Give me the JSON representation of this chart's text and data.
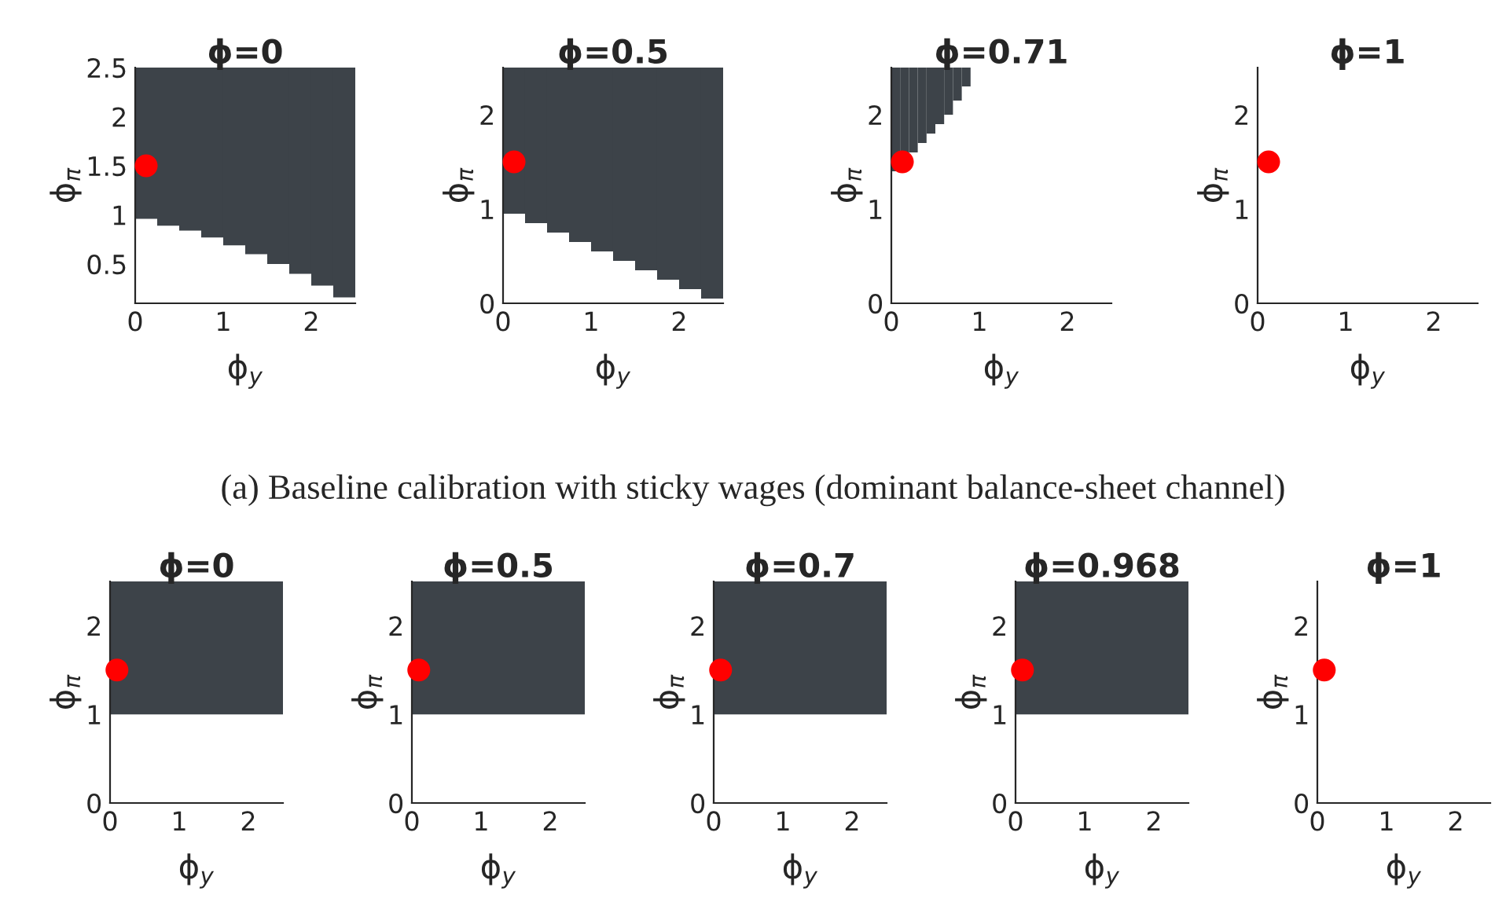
{
  "chart_data": [
    {
      "type": "bar",
      "title": "ϕ=0",
      "xlabel": "ϕ$_{y}$",
      "ylabel": "ϕ$_{π}$",
      "xlim": [
        0,
        2.5
      ],
      "ylim": [
        0.1,
        2.5
      ],
      "xticks": [
        0,
        1,
        2
      ],
      "yticks": [
        0.5,
        1,
        1.5,
        2,
        2.5
      ],
      "annotations": [
        "(a) Baseline calibration with sticky wages (dominant balance-sheet channel)"
      ],
      "series": [
        {
          "color": "#3d4349",
          "x": [
            0.125,
            0.375,
            0.625,
            0.875,
            1.125,
            1.375,
            1.625,
            1.875,
            2.125,
            2.375
          ],
          "base": [
            0.96,
            0.89,
            0.84,
            0.77,
            0.69,
            0.6,
            0.5,
            0.4,
            0.28,
            0.16
          ],
          "values": [
            1.54,
            1.61,
            1.66,
            1.73,
            1.81,
            1.9,
            2.0,
            2.1,
            2.22,
            2.34
          ]
        },
        {
          "type": "scatter",
          "marker": "circle",
          "color": "#ff0000",
          "x": [
            0.125
          ],
          "values": [
            1.5
          ]
        }
      ]
    },
    {
      "type": "bar",
      "title": "ϕ=0.5",
      "xlabel": "ϕ$_{y}$",
      "ylabel": "ϕ$_{π}$",
      "xlim": [
        0,
        2.5
      ],
      "ylim": [
        0,
        2.5
      ],
      "xticks": [
        0,
        1,
        2
      ],
      "yticks": [
        0,
        1,
        2
      ],
      "series": [
        {
          "color": "#3d4349",
          "x": [
            0.125,
            0.375,
            0.625,
            0.875,
            1.125,
            1.375,
            1.625,
            1.875,
            2.125,
            2.375
          ],
          "base": [
            0.95,
            0.85,
            0.75,
            0.65,
            0.55,
            0.45,
            0.35,
            0.25,
            0.15,
            0.05
          ],
          "values": [
            1.55,
            1.65,
            1.75,
            1.85,
            1.95,
            2.05,
            2.15,
            2.25,
            2.35,
            2.45
          ]
        },
        {
          "type": "scatter",
          "marker": "circle",
          "color": "#ff0000",
          "x": [
            0.125
          ],
          "values": [
            1.5
          ]
        }
      ]
    },
    {
      "type": "bar",
      "title": "ϕ=0.71",
      "xlabel": "ϕ$_{y}$",
      "ylabel": "ϕ$_{π}$",
      "xlim": [
        0,
        2.5
      ],
      "ylim": [
        0,
        2.5
      ],
      "xticks": [
        0,
        1,
        2
      ],
      "yticks": [
        0,
        1,
        2
      ],
      "series": [
        {
          "color": "#3d4349",
          "x": [
            0.05,
            0.15,
            0.25,
            0.35,
            0.45,
            0.55,
            0.65,
            0.75,
            0.85
          ],
          "base": [
            1.4,
            1.5,
            1.6,
            1.7,
            1.8,
            1.9,
            2.0,
            2.15,
            2.3
          ],
          "values": [
            1.1,
            1.0,
            0.9,
            0.8,
            0.7,
            0.6,
            0.5,
            0.35,
            0.2
          ]
        },
        {
          "type": "scatter",
          "marker": "circle",
          "color": "#ff0000",
          "x": [
            0.125
          ],
          "values": [
            1.5
          ]
        }
      ]
    },
    {
      "type": "scatter",
      "title": "ϕ=1",
      "xlabel": "ϕ$_{y}$",
      "ylabel": "ϕ$_{π}$",
      "xlim": [
        0,
        2.5
      ],
      "ylim": [
        0,
        2.5
      ],
      "xticks": [
        0,
        1,
        2
      ],
      "yticks": [
        0,
        1,
        2
      ],
      "series": [
        {
          "marker": "circle",
          "color": "#ff0000",
          "x": [
            0.125
          ],
          "values": [
            1.5
          ]
        }
      ]
    },
    {
      "type": "scatter",
      "title": "ϕ=0",
      "xlabel": "ϕ$_{y}$",
      "ylabel": "ϕ$_{π}$",
      "xlim": [
        0,
        2.5
      ],
      "ylim": [
        0,
        2.5
      ],
      "xticks": [
        0,
        1,
        2
      ],
      "yticks": [
        0,
        1,
        2
      ],
      "bands": [
        {
          "axis": "y",
          "from": 1.0,
          "to": 2.5,
          "color": "#3d4349"
        }
      ],
      "series": [
        {
          "marker": "circle",
          "color": "#ff0000",
          "x": [
            0.1
          ],
          "values": [
            1.5
          ]
        }
      ]
    },
    {
      "type": "scatter",
      "title": "ϕ=0.5",
      "xlabel": "ϕ$_{y}$",
      "ylabel": "ϕ$_{π}$",
      "xlim": [
        0,
        2.5
      ],
      "ylim": [
        0,
        2.5
      ],
      "xticks": [
        0,
        1,
        2
      ],
      "yticks": [
        0,
        1,
        2
      ],
      "bands": [
        {
          "axis": "y",
          "from": 1.0,
          "to": 2.5,
          "color": "#3d4349"
        }
      ],
      "series": [
        {
          "marker": "circle",
          "color": "#ff0000",
          "x": [
            0.1
          ],
          "values": [
            1.5
          ]
        }
      ]
    },
    {
      "type": "scatter",
      "title": "ϕ=0.7",
      "xlabel": "ϕ$_{y}$",
      "ylabel": "ϕ$_{π}$",
      "xlim": [
        0,
        2.5
      ],
      "ylim": [
        0,
        2.5
      ],
      "xticks": [
        0,
        1,
        2
      ],
      "yticks": [
        0,
        1,
        2
      ],
      "bands": [
        {
          "axis": "y",
          "from": 1.0,
          "to": 2.5,
          "color": "#3d4349"
        }
      ],
      "series": [
        {
          "marker": "circle",
          "color": "#ff0000",
          "x": [
            0.1
          ],
          "values": [
            1.5
          ]
        }
      ]
    },
    {
      "type": "scatter",
      "title": "ϕ=0.968",
      "xlabel": "ϕ$_{y}$",
      "ylabel": "ϕ$_{π}$",
      "xlim": [
        0,
        2.5
      ],
      "ylim": [
        0,
        2.5
      ],
      "xticks": [
        0,
        1,
        2
      ],
      "yticks": [
        0,
        1,
        2
      ],
      "bands": [
        {
          "axis": "y",
          "from": 1.0,
          "to": 2.5,
          "color": "#3d4349"
        }
      ],
      "series": [
        {
          "marker": "circle",
          "color": "#ff0000",
          "x": [
            0.1
          ],
          "values": [
            1.5
          ]
        }
      ]
    },
    {
      "type": "scatter",
      "title": "ϕ=1",
      "xlabel": "ϕ$_{y}$",
      "ylabel": "ϕ$_{π}$",
      "xlim": [
        0,
        2.5
      ],
      "ylim": [
        0,
        2.5
      ],
      "xticks": [
        0,
        1,
        2
      ],
      "yticks": [
        0,
        1,
        2
      ],
      "series": [
        {
          "marker": "circle",
          "color": "#ff0000",
          "x": [
            0.1
          ],
          "values": [
            1.5
          ]
        }
      ]
    }
  ]
}
